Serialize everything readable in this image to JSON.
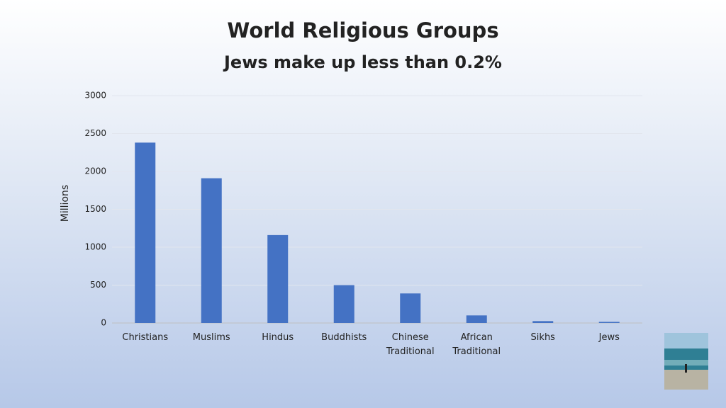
{
  "chart_data": {
    "type": "bar",
    "title": "World Religious Groups",
    "subtitle": "Jews make up less than 0.2%",
    "y_label": "Millions",
    "categories": [
      "Christians",
      "Muslims",
      "Hindus",
      "Buddhists",
      "Chinese Traditional",
      "African Traditional",
      "Sikhs",
      "Jews"
    ],
    "values": [
      2380,
      1910,
      1160,
      500,
      390,
      100,
      25,
      15
    ],
    "color": "#4472c4",
    "ylim": [
      0,
      3000
    ],
    "yticks": [
      0,
      500,
      1000,
      1500,
      2000,
      2500,
      3000
    ],
    "grid": true
  }
}
